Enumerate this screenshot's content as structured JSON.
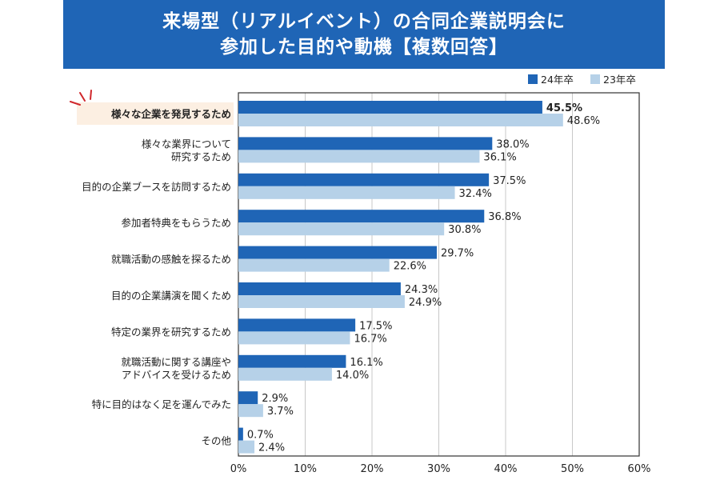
{
  "title": {
    "line1": "来場型（リアルイベント）の合同企業説明会に",
    "line2": "参加した目的や動機【複数回答】"
  },
  "colors": {
    "title_bg": "#1f65b6",
    "series_24": "#1f65b6",
    "series_23": "#b6d1e8",
    "highlight_text": "#d0272b",
    "highlight_bg": "#fcefe2"
  },
  "chart_data": {
    "type": "bar",
    "orientation": "horizontal",
    "title": "来場型（リアルイベント）の合同企業説明会に参加した目的や動機【複数回答】",
    "categories": [
      [
        "様々な企業を発見するため"
      ],
      [
        "様々な業界について",
        "研究するため"
      ],
      [
        "目的の企業ブースを訪問するため"
      ],
      [
        "参加者特典をもらうため"
      ],
      [
        "就職活動の感触を探るため"
      ],
      [
        "目的の企業講演を聞くため"
      ],
      [
        "特定の業界を研究するため"
      ],
      [
        "就職活動に関する講座や",
        "アドバイスを受けるため"
      ],
      [
        "特に目的はなく足を運んでみた"
      ],
      [
        "その他"
      ]
    ],
    "series": [
      {
        "name": "24年卒",
        "values": [
          45.5,
          38.0,
          37.5,
          36.8,
          29.7,
          24.3,
          17.5,
          16.1,
          2.9,
          0.7
        ]
      },
      {
        "name": "23年卒",
        "values": [
          48.6,
          36.1,
          32.4,
          30.8,
          22.6,
          24.9,
          16.7,
          14.0,
          3.7,
          2.4
        ]
      }
    ],
    "value_suffix": "%",
    "xlim": [
      0,
      60
    ],
    "ticks": [
      "0%",
      "10%",
      "20%",
      "30%",
      "40%",
      "50%",
      "60%"
    ],
    "tick_values": [
      0,
      10,
      20,
      30,
      40,
      50,
      60
    ],
    "grid": true,
    "legend_position": "top-right",
    "highlight_category_index": 0
  }
}
